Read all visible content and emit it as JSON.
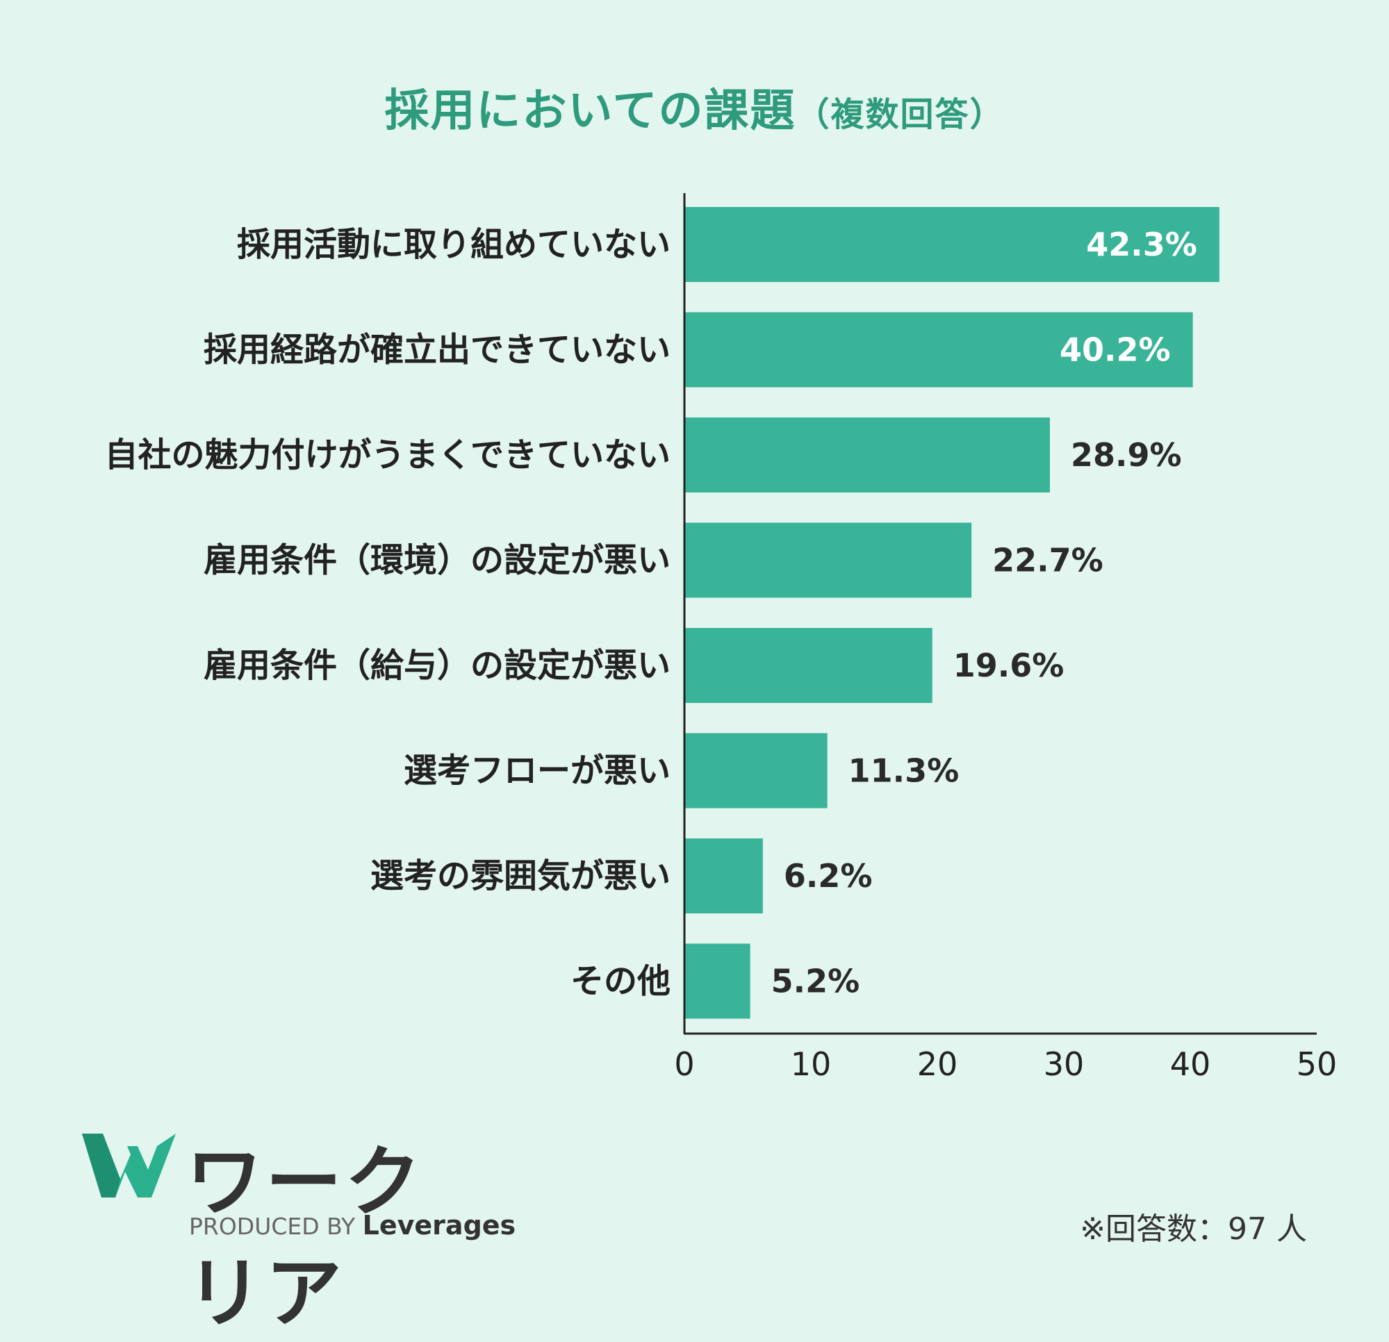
{
  "title": {
    "main": "採用においての課題",
    "sub": "（複数回答）"
  },
  "colors": {
    "bar": "#3ab498",
    "title": "#2e9b7c",
    "background": "#e3f5ef",
    "axis": "#222222"
  },
  "chart_data": {
    "type": "bar",
    "orientation": "horizontal",
    "categories": [
      "採用活動に取り組めていない",
      "採用経路が確立出できていない",
      "自社の魅力付けがうまくできていない",
      "雇用条件（環境）の設定が悪い",
      "雇用条件（給与）の設定が悪い",
      "選考フローが悪い",
      "選考の雰囲気が悪い",
      "その他"
    ],
    "values": [
      42.3,
      40.2,
      28.9,
      22.7,
      19.6,
      11.3,
      6.2,
      5.2
    ],
    "value_labels": [
      "42.3%",
      "40.2%",
      "28.9%",
      "22.7%",
      "19.6%",
      "11.3%",
      "6.2%",
      "5.2%"
    ],
    "xlim": [
      0,
      50
    ],
    "xticks": [
      0,
      10,
      20,
      30,
      40,
      50
    ],
    "grid": false
  },
  "logo": {
    "name": "ワークリア",
    "produced_by": "PRODUCED BY",
    "brand": "Leverages"
  },
  "footnote": "※回答数：97 人"
}
